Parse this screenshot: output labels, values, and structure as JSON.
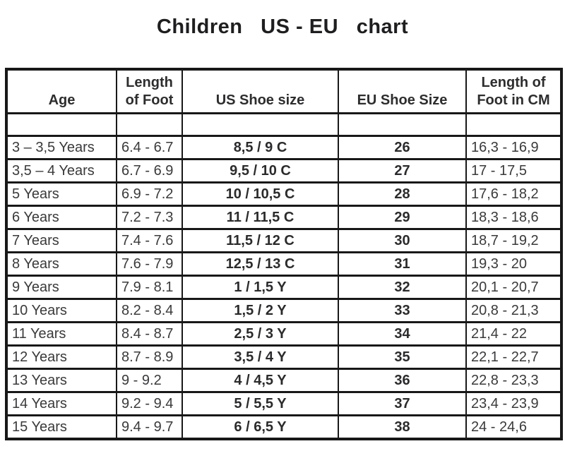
{
  "title": "Children   US - EU   chart",
  "colors": {
    "border": "#181818",
    "text": "#3a3a3c",
    "bold_text": "#2b2b2d",
    "background": "#ffffff"
  },
  "chart_data": {
    "type": "table",
    "title": "Children US - EU chart",
    "columns": [
      "Age",
      "Length\nof Foot",
      "US Shoe size",
      "EU Shoe Size",
      "Length of\nFoot in CM"
    ],
    "rows": [
      [
        "3 – 3,5 Years",
        "6.4 - 6.7",
        "8,5 / 9 C",
        "26",
        "16,3 - 16,9"
      ],
      [
        "3,5 – 4 Years",
        "6.7 - 6.9",
        "9,5 / 10 C",
        "27",
        "17 - 17,5"
      ],
      [
        "5 Years",
        "6.9 - 7.2",
        "10 / 10,5 C",
        "28",
        "17,6 - 18,2"
      ],
      [
        "6 Years",
        "7.2 - 7.3",
        "11 / 11,5 C",
        "29",
        "18,3 - 18,6"
      ],
      [
        "7 Years",
        "7.4 - 7.6",
        "11,5 / 12 C",
        "30",
        "18,7 - 19,2"
      ],
      [
        "8 Years",
        "7.6 - 7.9",
        "12,5 / 13 C",
        "31",
        "19,3 - 20"
      ],
      [
        "9 Years",
        "7.9 - 8.1",
        "1 / 1,5 Y",
        "32",
        "20,1 - 20,7"
      ],
      [
        "10 Years",
        "8.2 - 8.4",
        "1,5 / 2 Y",
        "33",
        "20,8 - 21,3"
      ],
      [
        "11 Years",
        "8.4 - 8.7",
        "2,5 / 3 Y",
        "34",
        "21,4 - 22"
      ],
      [
        "12 Years",
        "8.7 - 8.9",
        "3,5 / 4 Y",
        "35",
        "22,1 - 22,7"
      ],
      [
        "13 Years",
        "9 - 9.2",
        "4 / 4,5 Y",
        "36",
        "22,8 - 23,3"
      ],
      [
        "14 Years",
        "9.2 - 9.4",
        "5 / 5,5 Y",
        "37",
        "23,4 - 23,9"
      ],
      [
        "15 Years",
        "9.4 - 9.7",
        "6 / 6,5 Y",
        "38",
        "24 - 24,6"
      ]
    ]
  }
}
